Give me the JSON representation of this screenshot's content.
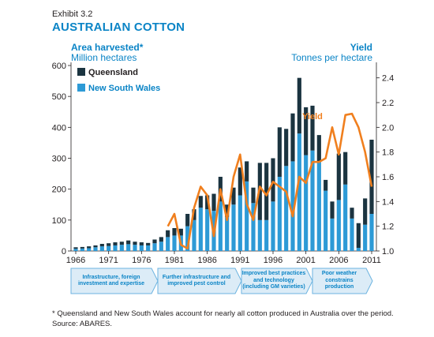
{
  "exhibit": "Exhibit 3.2",
  "title": "AUSTRALIAN COTTON",
  "left_axis": {
    "title": "Area harvested*",
    "unit": "Million hectares"
  },
  "right_axis": {
    "title": "Yield",
    "unit": "Tonnes per hectare"
  },
  "stages": [
    "Infrastructure, foreign investment and expertise",
    "Further infrastructure and improved pest control",
    "Improved best practices and technology (including GM varieties)",
    "Poor weather constrains production"
  ],
  "footnote": "* Queensland and New South Wales account for nearly all cotton produced in Australia over the period.",
  "source": "Source: ABARES.",
  "colors": {
    "queensland": "#1b3440",
    "nsw": "#2d9ad6",
    "yield": "#f07f1e",
    "stage_fill": "#dcecf7",
    "stage_border": "#6cb3e0",
    "title": "#0a84c6"
  },
  "chart_data": {
    "type": "bar",
    "stacked": true,
    "x": [
      1966,
      1967,
      1968,
      1969,
      1970,
      1971,
      1972,
      1973,
      1974,
      1975,
      1976,
      1977,
      1978,
      1979,
      1980,
      1981,
      1982,
      1983,
      1984,
      1985,
      1986,
      1987,
      1988,
      1989,
      1990,
      1991,
      1992,
      1993,
      1994,
      1995,
      1996,
      1997,
      1998,
      1999,
      2000,
      2001,
      2002,
      2003,
      2004,
      2005,
      2006,
      2007,
      2008,
      2009,
      2010,
      2011
    ],
    "x_ticks": [
      1966,
      1971,
      1976,
      1981,
      1986,
      1991,
      1996,
      2001,
      2006,
      2011
    ],
    "series": [
      {
        "name": "Queensland",
        "axis": "left",
        "values": [
          5,
          5,
          6,
          6,
          8,
          9,
          10,
          10,
          12,
          10,
          10,
          8,
          12,
          15,
          22,
          24,
          22,
          40,
          35,
          38,
          45,
          55,
          80,
          40,
          55,
          90,
          65,
          50,
          185,
          185,
          140,
          160,
          120,
          155,
          180,
          155,
          145,
          85,
          35,
          55,
          150,
          105,
          35,
          80,
          85,
          240
        ]
      },
      {
        "name": "New South Wales",
        "axis": "left",
        "values": [
          7,
          8,
          9,
          12,
          15,
          16,
          18,
          20,
          22,
          20,
          18,
          18,
          25,
          30,
          45,
          50,
          50,
          80,
          100,
          140,
          135,
          130,
          160,
          110,
          150,
          180,
          225,
          155,
          100,
          100,
          160,
          240,
          275,
          290,
          380,
          310,
          325,
          290,
          195,
          105,
          165,
          215,
          105,
          10,
          85,
          120
        ]
      },
      {
        "name": "Yield",
        "axis": "right",
        "type": "line",
        "values": [
          null,
          null,
          null,
          null,
          null,
          null,
          null,
          null,
          null,
          null,
          null,
          null,
          null,
          null,
          1.2,
          1.3,
          1.05,
          1.02,
          1.35,
          1.52,
          1.45,
          1.12,
          1.5,
          1.25,
          1.6,
          1.78,
          1.38,
          1.25,
          1.52,
          1.45,
          1.56,
          1.52,
          1.48,
          1.28,
          1.6,
          1.55,
          1.72,
          1.72,
          1.75,
          2.0,
          1.78,
          2.1,
          2.11,
          2.0,
          1.8,
          1.52
        ]
      }
    ],
    "left_axis": {
      "ylim": [
        0,
        600
      ],
      "ticks": [
        0,
        100,
        200,
        300,
        400,
        500,
        600
      ]
    },
    "right_axis": {
      "ylim": [
        1.0,
        2.5
      ],
      "ticks": [
        1.0,
        1.2,
        1.4,
        1.6,
        1.8,
        2.0,
        2.2,
        2.4
      ]
    },
    "legend": [
      "Queensland",
      "New South Wales"
    ],
    "annotation": "Yield",
    "grid": false
  }
}
